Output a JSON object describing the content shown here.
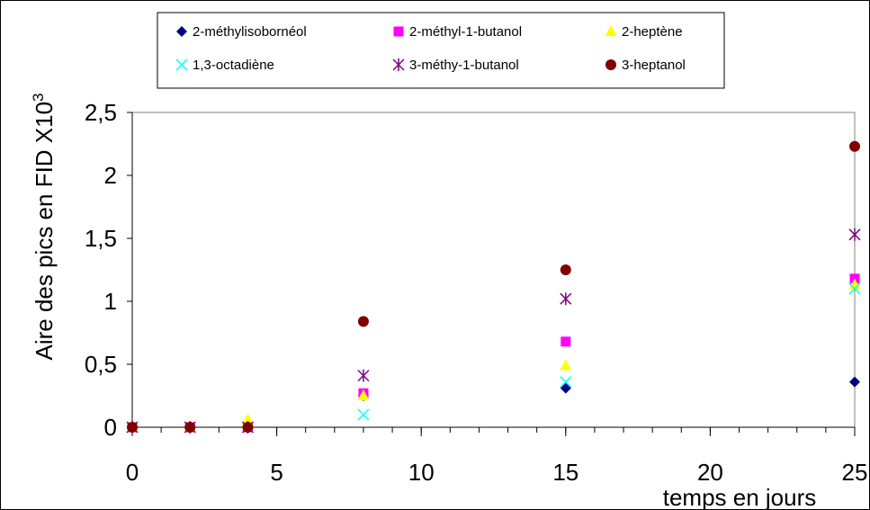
{
  "chart_data": {
    "type": "scatter",
    "title": "",
    "xlabel": "temps en jours",
    "ylabel": "Aire des pics en FID X10",
    "ylabel_exponent": "3",
    "xlim": [
      0,
      25
    ],
    "ylim": [
      0,
      2.5
    ],
    "xticks": [
      0,
      5,
      10,
      15,
      20,
      25
    ],
    "xtick_labels": [
      "0",
      "5",
      "10",
      "15",
      "20",
      "25"
    ],
    "yticks": [
      0,
      0.5,
      1,
      1.5,
      2,
      2.5
    ],
    "ytick_labels": [
      "0",
      "0,5",
      "1",
      "1,5",
      "2",
      "2,5"
    ],
    "grid": false,
    "legend_position": "top",
    "series": [
      {
        "name": "2-méthylisobornéol",
        "marker": "diamond",
        "color": "#000080",
        "x": [
          0,
          2,
          4,
          8,
          15,
          25
        ],
        "y": [
          0,
          0,
          0,
          0.25,
          0.31,
          0.36
        ]
      },
      {
        "name": "2-méthyl-1-butanol",
        "marker": "square",
        "color": "#FF00FF",
        "x": [
          0,
          2,
          4,
          8,
          15,
          25
        ],
        "y": [
          0,
          0,
          0,
          0.27,
          0.68,
          1.18
        ]
      },
      {
        "name": "2-heptène",
        "marker": "triangle",
        "color": "#FFFF00",
        "x": [
          0,
          2,
          4,
          8,
          15,
          25
        ],
        "y": [
          0,
          0,
          0.06,
          0.25,
          0.49,
          1.13
        ]
      },
      {
        "name": "1,3-octadiène",
        "marker": "x",
        "color": "#00FFFF",
        "x": [
          0,
          2,
          4,
          8,
          15,
          25
        ],
        "y": [
          0,
          0,
          0,
          0.1,
          0.36,
          1.1
        ]
      },
      {
        "name": "3-méthy-1-butanol",
        "marker": "star",
        "color": "#800080",
        "x": [
          0,
          2,
          4,
          8,
          15,
          25
        ],
        "y": [
          0,
          0,
          0,
          0.41,
          1.02,
          1.53
        ]
      },
      {
        "name": "3-heptanol",
        "marker": "circle",
        "color": "#800000",
        "x": [
          0,
          2,
          4,
          8,
          15,
          25
        ],
        "y": [
          0,
          0,
          0,
          0.84,
          1.25,
          2.23
        ]
      }
    ]
  }
}
